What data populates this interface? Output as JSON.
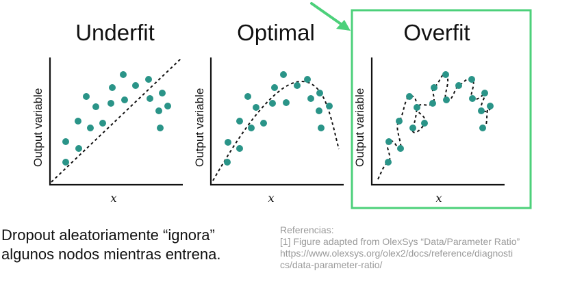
{
  "panels": [
    {
      "id": "underfit",
      "title": "Underfit",
      "xlabel": "x",
      "ylabel": "Output variable",
      "highlighted": false,
      "points": [
        [
          96,
          237
        ],
        [
          96,
          207
        ],
        [
          115,
          217
        ],
        [
          114,
          177
        ],
        [
          126,
          141
        ],
        [
          132,
          187
        ],
        [
          150,
          180
        ],
        [
          140,
          156
        ],
        [
          162,
          151
        ],
        [
          164,
          128
        ],
        [
          180,
          109
        ],
        [
          182,
          146
        ],
        [
          198,
          125
        ],
        [
          217,
          116
        ],
        [
          219,
          144
        ],
        [
          237,
          136
        ],
        [
          232,
          162
        ],
        [
          245,
          155
        ],
        [
          234,
          187
        ]
      ],
      "curve": "line"
    },
    {
      "id": "optimal",
      "title": "Optimal",
      "xlabel": "x",
      "ylabel": "Output variable",
      "highlighted": false,
      "points": [
        [
          332,
          237
        ],
        [
          333,
          208
        ],
        [
          350,
          217
        ],
        [
          350,
          177
        ],
        [
          362,
          141
        ],
        [
          367,
          187
        ],
        [
          385,
          180
        ],
        [
          374,
          157
        ],
        [
          398,
          151
        ],
        [
          401,
          128
        ],
        [
          414,
          109
        ],
        [
          418,
          150
        ],
        [
          434,
          125
        ],
        [
          449,
          116
        ],
        [
          454,
          144
        ],
        [
          467,
          136
        ],
        [
          466,
          162
        ],
        [
          481,
          155
        ],
        [
          469,
          187
        ]
      ],
      "curve": "smooth"
    },
    {
      "id": "overfit",
      "title": "Overfit",
      "xlabel": "x",
      "ylabel": "Output variable",
      "highlighted": true,
      "points": [
        [
          567,
          237
        ],
        [
          568,
          207
        ],
        [
          585,
          217
        ],
        [
          583,
          177
        ],
        [
          598,
          141
        ],
        [
          603,
          187
        ],
        [
          620,
          180
        ],
        [
          609,
          157
        ],
        [
          632,
          151
        ],
        [
          634,
          128
        ],
        [
          651,
          109
        ],
        [
          652,
          146
        ],
        [
          670,
          125
        ],
        [
          689,
          116
        ],
        [
          690,
          144
        ],
        [
          708,
          136
        ],
        [
          703,
          162
        ],
        [
          716,
          155
        ],
        [
          705,
          187
        ]
      ],
      "curve": "wiggly"
    }
  ],
  "caption": {
    "line1": "Dropout aleatoriamente “ignora”",
    "line2": "algunos nodos mientras entrena."
  },
  "references": {
    "heading": "Referencias:",
    "line1": "[1] Figure adapted from OlexSys “Data/Parameter Ratio”",
    "line2": "https://www.olexsys.org/olex2/docs/reference/diagnosti",
    "line3": "cs/data-parameter-ratio/"
  },
  "colors": {
    "point": "#2a9488",
    "highlight": "#4cd07a",
    "axis": "#111111",
    "reference_text": "#9a9a9a"
  }
}
